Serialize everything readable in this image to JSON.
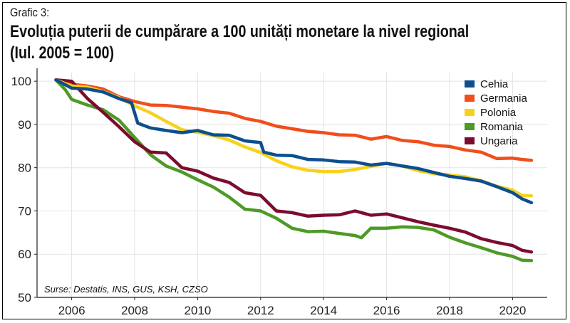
{
  "header": {
    "label": "Grafic 3:",
    "title_line1": "Evoluția puterii de cumpărare a 100 unități monetare la nivel regional",
    "title_line2": "(Iul. 2005 = 100)"
  },
  "chart_data": {
    "type": "line",
    "title": "Evoluția puterii de cumpărare a 100 unități monetare la nivel regional (Iul. 2005 = 100)",
    "xlabel": "",
    "ylabel": "",
    "xlim": [
      2004.9,
      2021.1
    ],
    "ylim": [
      50,
      102
    ],
    "xticks": [
      2006,
      2008,
      2010,
      2012,
      2014,
      2016,
      2018,
      2020
    ],
    "yticks": [
      50,
      60,
      70,
      80,
      90,
      100
    ],
    "grid": true,
    "legend": "top-right",
    "source_note": "Surse: Destatis, INS, GUS, KSH, CZSO",
    "series": [
      {
        "name": "Cehia",
        "color": "#0d4f8e",
        "x": [
          2005.5,
          2006.0,
          2006.5,
          2007.0,
          2007.5,
          2007.9,
          2008.1,
          2008.5,
          2009.0,
          2009.5,
          2010.0,
          2010.5,
          2011.0,
          2011.5,
          2012.0,
          2012.1,
          2012.5,
          2013.0,
          2013.5,
          2014.0,
          2014.5,
          2015.0,
          2015.5,
          2016.0,
          2016.5,
          2017.0,
          2017.5,
          2018.0,
          2018.5,
          2019.0,
          2019.5,
          2020.0,
          2020.3,
          2020.6
        ],
        "y": [
          100.3,
          98.4,
          98.2,
          97.5,
          96.0,
          95.0,
          90.3,
          89.2,
          88.6,
          88.1,
          88.6,
          87.6,
          87.5,
          86.2,
          85.8,
          83.6,
          82.9,
          82.8,
          81.9,
          81.8,
          81.4,
          81.3,
          80.6,
          81.0,
          80.4,
          79.8,
          78.9,
          78.0,
          77.5,
          76.9,
          75.6,
          74.2,
          72.8,
          71.9
        ]
      },
      {
        "name": "Germania",
        "color": "#f04e1c",
        "x": [
          2005.5,
          2006.0,
          2006.5,
          2007.0,
          2007.5,
          2008.0,
          2008.5,
          2009.0,
          2009.5,
          2010.0,
          2010.5,
          2011.0,
          2011.5,
          2012.0,
          2012.5,
          2013.0,
          2013.5,
          2014.0,
          2014.5,
          2015.0,
          2015.5,
          2016.0,
          2016.5,
          2017.0,
          2017.5,
          2018.0,
          2018.5,
          2019.0,
          2019.5,
          2020.0,
          2020.3,
          2020.6
        ],
        "y": [
          100.3,
          99.3,
          98.9,
          98.2,
          96.4,
          95.3,
          94.5,
          94.4,
          94.0,
          93.6,
          93.0,
          92.6,
          91.4,
          90.7,
          89.6,
          89.0,
          88.4,
          88.1,
          87.6,
          87.5,
          86.6,
          87.2,
          86.3,
          86.0,
          85.2,
          84.9,
          84.1,
          83.6,
          82.1,
          82.2,
          81.9,
          81.7
        ]
      },
      {
        "name": "Polonia",
        "color": "#f7d21b",
        "x": [
          2005.5,
          2006.0,
          2006.5,
          2007.0,
          2007.5,
          2008.0,
          2008.5,
          2009.0,
          2009.5,
          2010.0,
          2010.5,
          2011.0,
          2011.5,
          2012.0,
          2012.5,
          2013.0,
          2013.5,
          2014.0,
          2014.5,
          2015.0,
          2015.5,
          2016.0,
          2016.5,
          2017.0,
          2017.5,
          2018.0,
          2018.5,
          2019.0,
          2019.5,
          2020.0,
          2020.3,
          2020.6
        ],
        "y": [
          100.3,
          98.9,
          98.6,
          97.6,
          96.2,
          94.3,
          92.7,
          90.7,
          88.8,
          88.2,
          87.4,
          86.4,
          84.8,
          83.5,
          81.6,
          80.2,
          79.4,
          79.1,
          79.1,
          79.6,
          80.3,
          81.0,
          80.4,
          79.3,
          78.6,
          78.3,
          77.9,
          77.0,
          75.7,
          74.8,
          73.6,
          73.5
        ]
      },
      {
        "name": "Romania",
        "color": "#4e9a27",
        "x": [
          2005.5,
          2005.8,
          2006.0,
          2006.5,
          2007.0,
          2007.5,
          2008.0,
          2008.5,
          2009.0,
          2009.5,
          2010.0,
          2010.5,
          2011.0,
          2011.5,
          2012.0,
          2012.5,
          2013.0,
          2013.5,
          2014.0,
          2014.5,
          2015.0,
          2015.2,
          2015.5,
          2016.0,
          2016.5,
          2017.0,
          2017.5,
          2018.0,
          2018.5,
          2019.0,
          2019.5,
          2020.0,
          2020.3,
          2020.6
        ],
        "y": [
          100.3,
          98.0,
          95.8,
          94.5,
          93.4,
          91.0,
          87.0,
          83.0,
          80.4,
          79.0,
          77.2,
          75.5,
          73.2,
          70.4,
          70.0,
          68.3,
          66.0,
          65.2,
          65.3,
          64.8,
          64.3,
          63.8,
          66.0,
          66.0,
          66.3,
          66.2,
          65.6,
          63.9,
          62.6,
          61.5,
          60.3,
          59.5,
          58.6,
          58.5
        ]
      },
      {
        "name": "Ungaria",
        "color": "#7c0c2e",
        "x": [
          2005.5,
          2006.0,
          2006.5,
          2007.0,
          2007.5,
          2008.0,
          2008.5,
          2009.0,
          2009.5,
          2010.0,
          2010.5,
          2011.0,
          2011.5,
          2012.0,
          2012.5,
          2013.0,
          2013.5,
          2014.0,
          2014.5,
          2015.0,
          2015.5,
          2016.0,
          2016.5,
          2017.0,
          2017.5,
          2018.0,
          2018.5,
          2019.0,
          2019.5,
          2020.0,
          2020.3,
          2020.6
        ],
        "y": [
          100.3,
          100.0,
          96.0,
          92.8,
          89.5,
          86.0,
          83.6,
          83.4,
          80.0,
          79.2,
          77.6,
          76.6,
          74.2,
          73.6,
          70.0,
          69.6,
          68.8,
          69.0,
          69.1,
          70.0,
          69.0,
          69.3,
          68.4,
          67.5,
          66.7,
          66.0,
          65.1,
          63.6,
          62.7,
          62.0,
          60.9,
          60.5
        ]
      }
    ]
  }
}
